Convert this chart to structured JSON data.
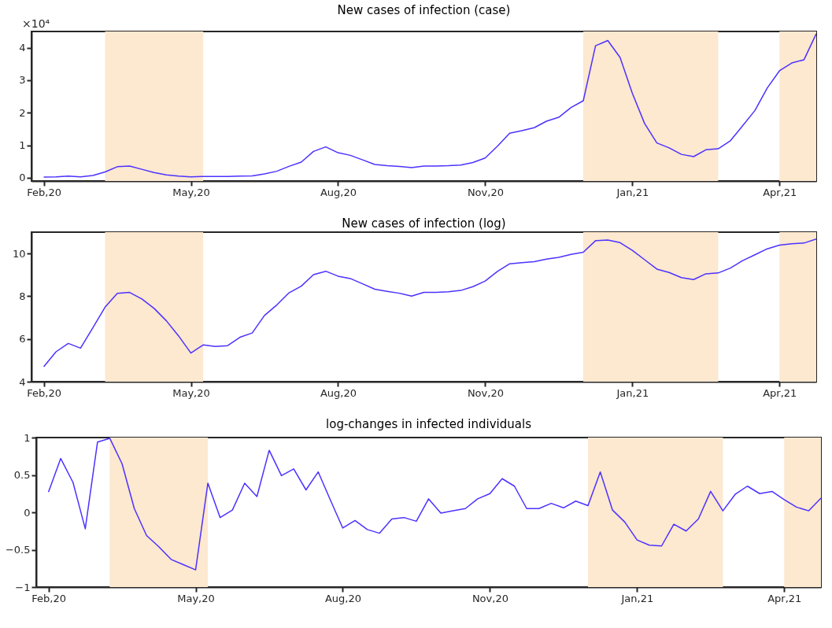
{
  "chart_data": [
    {
      "type": "line",
      "title": "New cases of infection (case)",
      "annotations": [
        "×10⁴"
      ],
      "categories": [
        "Feb,20",
        null,
        null,
        null,
        null,
        null,
        null,
        null,
        null,
        null,
        null,
        null,
        "May,20",
        null,
        null,
        null,
        null,
        null,
        null,
        null,
        null,
        null,
        null,
        null,
        "Aug,20",
        null,
        null,
        null,
        null,
        null,
        null,
        null,
        null,
        null,
        null,
        null,
        "Nov,20",
        null,
        null,
        null,
        null,
        null,
        null,
        null,
        null,
        null,
        null,
        null,
        "Jan,21",
        null,
        null,
        null,
        null,
        null,
        null,
        null,
        null,
        null,
        null,
        null,
        "Apr,21",
        null,
        null,
        null
      ],
      "series": [
        {
          "color": "#4b32ff",
          "values": [
            0.02,
            0.03,
            0.05,
            0.03,
            0.07,
            0.18,
            0.34,
            0.36,
            0.26,
            0.16,
            0.09,
            0.05,
            0.03,
            0.04,
            0.04,
            0.04,
            0.05,
            0.06,
            0.12,
            0.2,
            0.35,
            0.48,
            0.81,
            0.95,
            0.77,
            0.69,
            0.55,
            0.41,
            0.37,
            0.35,
            0.31,
            0.36,
            0.36,
            0.37,
            0.39,
            0.47,
            0.61,
            0.97,
            1.37,
            1.45,
            1.54,
            1.74,
            1.86,
            2.16,
            2.37,
            4.06,
            4.22,
            3.7,
            2.6,
            1.67,
            1.07,
            0.92,
            0.72,
            0.65,
            0.86,
            0.89,
            1.14,
            1.6,
            2.07,
            2.76,
            3.29,
            3.53,
            3.63,
            4.43
          ]
        }
      ],
      "ylim": [
        -0.1,
        4.5
      ],
      "yticks": [
        0,
        1,
        2,
        3,
        4
      ]
    },
    {
      "type": "line",
      "title": "New cases of infection (log)",
      "categories": [
        "Feb,20",
        null,
        null,
        null,
        null,
        null,
        null,
        null,
        null,
        null,
        null,
        null,
        "May,20",
        null,
        null,
        null,
        null,
        null,
        null,
        null,
        null,
        null,
        null,
        null,
        "Aug,20",
        null,
        null,
        null,
        null,
        null,
        null,
        null,
        null,
        null,
        null,
        null,
        "Nov,20",
        null,
        null,
        null,
        null,
        null,
        null,
        null,
        null,
        null,
        null,
        null,
        "Jan,21",
        null,
        null,
        null,
        null,
        null,
        null,
        null,
        null,
        null,
        null,
        null,
        "Apr,21",
        null,
        null,
        null
      ],
      "series": [
        {
          "color": "#4b32ff",
          "values": [
            4.7,
            5.4,
            5.79,
            5.57,
            6.52,
            7.49,
            8.14,
            8.18,
            7.87,
            7.43,
            6.85,
            6.14,
            5.34,
            5.72,
            5.65,
            5.69,
            6.08,
            6.28,
            7.1,
            7.59,
            8.16,
            8.47,
            9.01,
            9.17,
            8.94,
            8.83,
            8.58,
            8.33,
            8.23,
            8.14,
            8.01,
            8.18,
            8.18,
            8.21,
            8.27,
            8.45,
            8.71,
            9.16,
            9.52,
            9.57,
            9.62,
            9.74,
            9.82,
            9.96,
            10.06,
            10.6,
            10.63,
            10.51,
            10.15,
            9.71,
            9.27,
            9.11,
            8.87,
            8.78,
            9.05,
            9.09,
            9.32,
            9.67,
            9.94,
            10.22,
            10.39,
            10.46,
            10.49,
            10.68
          ]
        }
      ],
      "ylim": [
        4,
        11
      ],
      "yticks": [
        4,
        6,
        8,
        10
      ]
    },
    {
      "type": "line",
      "title": "log-changes in infected individuals",
      "categories": [
        "Feb,20",
        null,
        null,
        null,
        null,
        null,
        null,
        null,
        null,
        null,
        null,
        null,
        "May,20",
        null,
        null,
        null,
        null,
        null,
        null,
        null,
        null,
        null,
        null,
        null,
        "Aug,20",
        null,
        null,
        null,
        null,
        null,
        null,
        null,
        null,
        null,
        null,
        null,
        "Nov,20",
        null,
        null,
        null,
        null,
        null,
        null,
        null,
        null,
        null,
        null,
        null,
        "Jan,21",
        null,
        null,
        null,
        null,
        null,
        null,
        null,
        null,
        null,
        null,
        null,
        "Apr,21",
        null,
        null,
        null
      ],
      "series": [
        {
          "color": "#4b32ff",
          "values": [
            0.27,
            0.72,
            0.4,
            -0.22,
            0.94,
            0.99,
            0.65,
            0.05,
            -0.31,
            -0.46,
            -0.63,
            -0.7,
            -0.77,
            0.39,
            -0.07,
            0.03,
            0.39,
            0.21,
            0.83,
            0.49,
            0.58,
            0.3,
            0.54,
            0.16,
            -0.21,
            -0.11,
            -0.23,
            -0.28,
            -0.09,
            -0.07,
            -0.12,
            0.18,
            -0.01,
            0.02,
            0.05,
            0.18,
            0.25,
            0.45,
            0.35,
            0.05,
            0.05,
            0.12,
            0.06,
            0.15,
            0.09,
            0.54,
            0.03,
            -0.13,
            -0.37,
            -0.44,
            -0.45,
            -0.16,
            -0.25,
            -0.09,
            0.28,
            0.02,
            0.24,
            0.35,
            0.25,
            0.28,
            0.17,
            0.07,
            0.02,
            0.19
          ]
        }
      ],
      "ylim": [
        -1,
        1
      ],
      "yticks": [
        -1,
        -0.5,
        0,
        0.5,
        1
      ]
    }
  ]
}
